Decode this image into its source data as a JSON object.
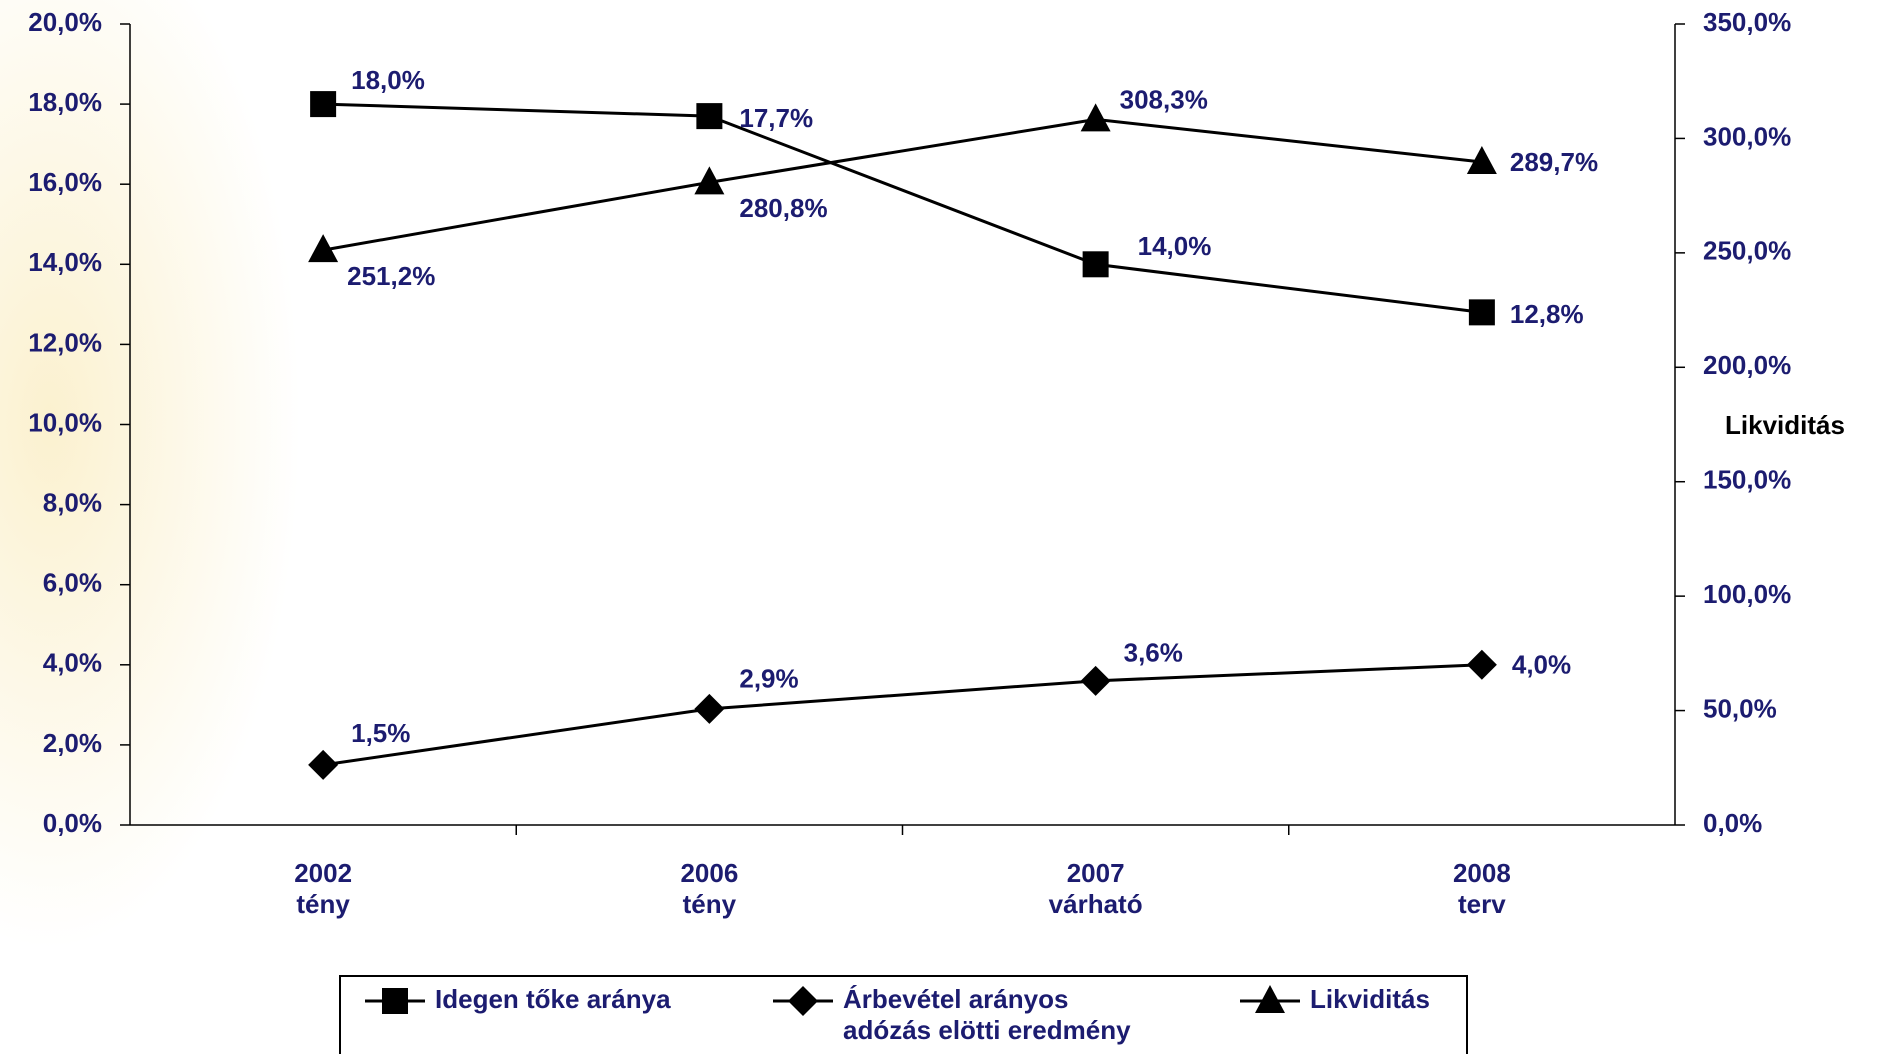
{
  "chart_data": {
    "type": "line",
    "categories": [
      "2002\ntény",
      "2006\ntény",
      "2007\nvárható",
      "2008\nterv"
    ],
    "ylim": [
      0,
      20
    ],
    "yticks": [
      {
        "value": 0,
        "label": "0,0%"
      },
      {
        "value": 2,
        "label": "2,0%"
      },
      {
        "value": 4,
        "label": "4,0%"
      },
      {
        "value": 6,
        "label": "6,0%"
      },
      {
        "value": 8,
        "label": "8,0%"
      },
      {
        "value": 10,
        "label": "10,0%"
      },
      {
        "value": 12,
        "label": "12,0%"
      },
      {
        "value": 14,
        "label": "14,0%"
      },
      {
        "value": 16,
        "label": "16,0%"
      },
      {
        "value": 18,
        "label": "18,0%"
      },
      {
        "value": 20,
        "label": "20,0%"
      }
    ],
    "y2lim": [
      0,
      350
    ],
    "y2ticks": [
      {
        "value": 0,
        "label": "0,0%"
      },
      {
        "value": 50,
        "label": "50,0%"
      },
      {
        "value": 100,
        "label": "100,0%"
      },
      {
        "value": 150,
        "label": "150,0%"
      },
      {
        "value": 200,
        "label": "200,0%"
      },
      {
        "value": 250,
        "label": "250,0%"
      },
      {
        "value": 300,
        "label": "300,0%"
      },
      {
        "value": 350,
        "label": "350,0%"
      }
    ],
    "y2label": "Likviditás",
    "legend": "bottom",
    "series": [
      {
        "name": "Idegen tőke aránya",
        "color": "#000000",
        "marker": "square",
        "values": [
          18.0,
          17.7,
          14.0,
          12.8
        ],
        "value_labels": [
          "18,0%",
          "17,7%",
          "14,0%",
          "12,8%"
        ]
      },
      {
        "name": "Árbevétel arányos\nadózás elötti eredmény",
        "color": "#000000",
        "marker": "diamond",
        "values": [
          1.5,
          2.9,
          3.6,
          4.0
        ],
        "value_labels": [
          "1,5%",
          "2,9%",
          "3,6%",
          "4,0%"
        ]
      },
      {
        "name": "Likviditás",
        "color": "#000000",
        "marker": "triangle",
        "axis": "y2",
        "values": [
          251.2,
          280.8,
          308.3,
          289.7
        ],
        "value_labels": [
          "251,2%",
          "280,8%",
          "308,3%",
          "289,7%"
        ]
      }
    ]
  }
}
